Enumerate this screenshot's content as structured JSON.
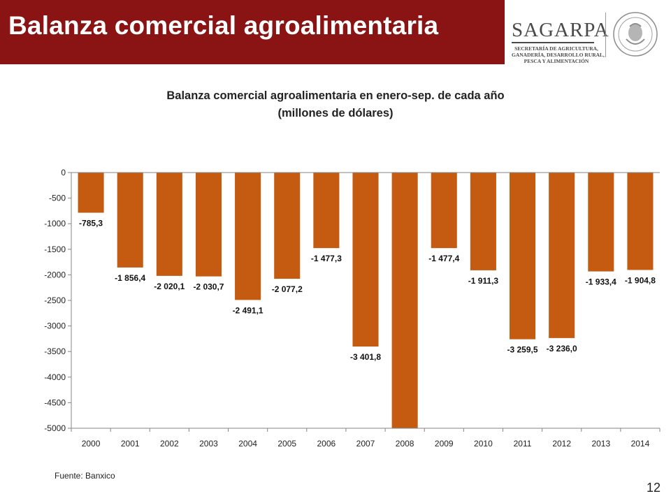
{
  "header": {
    "title": "Balanza comercial agroalimentaria",
    "logo": {
      "name": "SAGARPA",
      "lines": [
        "SECRETARÍA DE AGRICULTURA,",
        "GANADERÍA, DESARROLLO RURAL,",
        "PESCA Y ALIMENTACIÓN"
      ],
      "seal_icon": "mexican-coat-of-arms-seal"
    },
    "colors": {
      "bar": "#8a1414"
    }
  },
  "chart_data": {
    "type": "bar",
    "title_line1": "Balanza comercial agroalimentaria en enero-sep. de cada año",
    "title_line2": "(millones de dólares)",
    "categories": [
      "2000",
      "2001",
      "2002",
      "2003",
      "2004",
      "2005",
      "2006",
      "2007",
      "2008",
      "2009",
      "2010",
      "2011",
      "2012",
      "2013",
      "2014"
    ],
    "values": [
      -785.3,
      -1856.4,
      -2020.1,
      -2030.7,
      -2491.1,
      -2077.2,
      -1477.3,
      -3401.8,
      -5000,
      -1477.4,
      -1911.3,
      -3259.5,
      -3236.0,
      -1933.4,
      -1904.8
    ],
    "data_labels": [
      "-785,3",
      "-1 856,4",
      "-2 020,1",
      "-2 030,7",
      "-2 491,1",
      "-2 077,2",
      "-1 477,3",
      "-3 401,8",
      "",
      "-1 477,4",
      "-1 911,3",
      "-3 259,5",
      "-3 236,0",
      "-1 933,4",
      "-1 904,8"
    ],
    "yticks": [
      0,
      -500,
      -1000,
      -1500,
      -2000,
      -2500,
      -3000,
      -3500,
      -4000,
      -4500,
      -5000
    ],
    "ylim": [
      -5000,
      0
    ],
    "grid": false,
    "legend": "none",
    "colors": {
      "bar": "#c55a11",
      "axis": "#868686"
    }
  },
  "footer": {
    "source": "Fuente: Banxico",
    "page_number": "12"
  }
}
